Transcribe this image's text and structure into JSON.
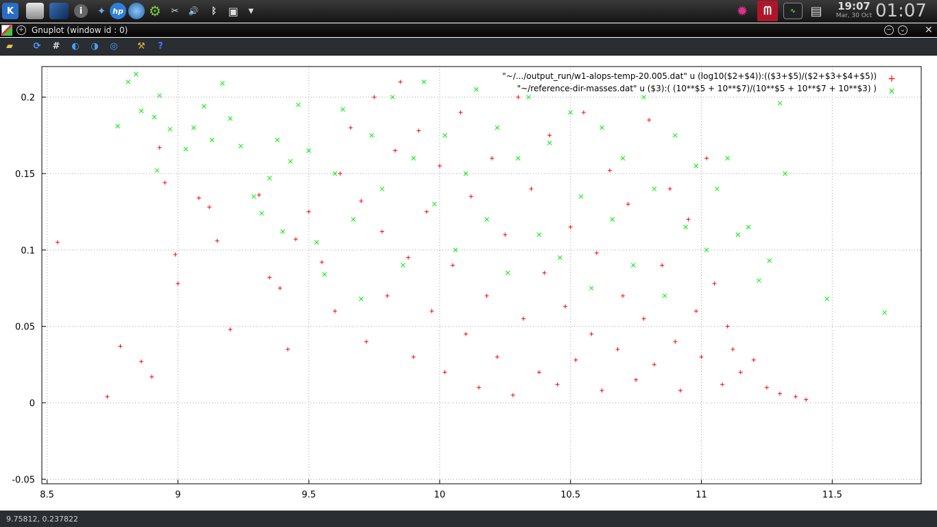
{
  "taskbar": {
    "kde_label": "K",
    "info_label": "i",
    "hp_label": "hp",
    "cut_label": "✂",
    "volume_label": "🔊",
    "bluetooth_label": "ᛒ",
    "clock_time": "19:07",
    "clock_date": "Mar, 30 Oct",
    "big_clock": "01:07"
  },
  "window": {
    "title": "Gnuplot (window id : 0)"
  },
  "toolbar": {
    "tools": [
      "copy-to-clipboard",
      "replot",
      "toggle-grid",
      "previous-zoom",
      "next-zoom",
      "autoscale",
      "preferences",
      "help"
    ]
  },
  "status": {
    "coords": "9.75812, 0.237822"
  },
  "colors": {
    "series1": "#ff0000",
    "series2": "#00ee00",
    "grid": "#a0a0a0"
  },
  "chart_data": {
    "type": "scatter",
    "title": "",
    "xlabel": "",
    "ylabel": "",
    "xlim": [
      8.48,
      11.84
    ],
    "ylim": [
      -0.053,
      0.22
    ],
    "x_ticks": [
      8.5,
      9,
      9.5,
      10,
      10.5,
      11,
      11.5
    ],
    "x_tick_labels": [
      "8.5",
      "9",
      "9.5",
      "10",
      "10.5",
      "11",
      "11.5"
    ],
    "y_ticks": [
      -0.05,
      0,
      0.05,
      0.1,
      0.15,
      0.2
    ],
    "y_tick_labels": [
      "-0.05",
      "0",
      "0.05",
      "0.1",
      "0.15",
      "0.2"
    ],
    "grid": true,
    "legend_position": "top-right",
    "series": [
      {
        "name": "\"~/.../output_run/w1-alops-temp-20.005.dat\" u (log10($2+$4)):(($3+$5)/($2+$3+$4+$5))",
        "marker": "+",
        "color": "#ff0000",
        "points": [
          [
            8.54,
            0.105
          ],
          [
            8.73,
            0.004
          ],
          [
            8.78,
            0.037
          ],
          [
            8.86,
            0.027
          ],
          [
            8.9,
            0.017
          ],
          [
            8.93,
            0.167
          ],
          [
            8.95,
            0.144
          ],
          [
            8.99,
            0.097
          ],
          [
            9.0,
            0.078
          ],
          [
            9.08,
            0.134
          ],
          [
            9.12,
            0.128
          ],
          [
            9.15,
            0.106
          ],
          [
            9.2,
            0.048
          ],
          [
            9.31,
            0.136
          ],
          [
            9.35,
            0.082
          ],
          [
            9.39,
            0.075
          ],
          [
            9.42,
            0.035
          ],
          [
            9.45,
            0.107
          ],
          [
            9.5,
            0.125
          ],
          [
            9.55,
            0.092
          ],
          [
            9.6,
            0.06
          ],
          [
            9.62,
            0.15
          ],
          [
            9.66,
            0.18
          ],
          [
            9.7,
            0.132
          ],
          [
            9.72,
            0.04
          ],
          [
            9.75,
            0.2
          ],
          [
            9.78,
            0.112
          ],
          [
            9.8,
            0.07
          ],
          [
            9.83,
            0.165
          ],
          [
            9.85,
            0.21
          ],
          [
            9.88,
            0.095
          ],
          [
            9.9,
            0.03
          ],
          [
            9.92,
            0.178
          ],
          [
            9.95,
            0.125
          ],
          [
            9.97,
            0.06
          ],
          [
            10.0,
            0.155
          ],
          [
            10.02,
            0.02
          ],
          [
            10.05,
            0.09
          ],
          [
            10.08,
            0.19
          ],
          [
            10.1,
            0.045
          ],
          [
            10.12,
            0.135
          ],
          [
            10.15,
            0.01
          ],
          [
            10.18,
            0.07
          ],
          [
            10.2,
            0.16
          ],
          [
            10.22,
            0.03
          ],
          [
            10.25,
            0.11
          ],
          [
            10.28,
            0.005
          ],
          [
            10.3,
            0.2
          ],
          [
            10.32,
            0.055
          ],
          [
            10.35,
            0.14
          ],
          [
            10.38,
            0.02
          ],
          [
            10.4,
            0.085
          ],
          [
            10.42,
            0.175
          ],
          [
            10.45,
            0.012
          ],
          [
            10.48,
            0.063
          ],
          [
            10.5,
            0.115
          ],
          [
            10.52,
            0.028
          ],
          [
            10.55,
            0.19
          ],
          [
            10.58,
            0.045
          ],
          [
            10.6,
            0.098
          ],
          [
            10.62,
            0.008
          ],
          [
            10.65,
            0.152
          ],
          [
            10.68,
            0.035
          ],
          [
            10.7,
            0.07
          ],
          [
            10.72,
            0.13
          ],
          [
            10.75,
            0.015
          ],
          [
            10.78,
            0.055
          ],
          [
            10.8,
            0.185
          ],
          [
            10.82,
            0.025
          ],
          [
            10.85,
            0.09
          ],
          [
            10.88,
            0.14
          ],
          [
            10.9,
            0.04
          ],
          [
            10.92,
            0.008
          ],
          [
            10.95,
            0.12
          ],
          [
            10.98,
            0.06
          ],
          [
            11.0,
            0.03
          ],
          [
            11.02,
            0.16
          ],
          [
            11.05,
            0.078
          ],
          [
            11.08,
            0.012
          ],
          [
            11.1,
            0.05
          ],
          [
            11.12,
            0.035
          ],
          [
            11.15,
            0.02
          ],
          [
            11.2,
            0.028
          ],
          [
            11.25,
            0.01
          ],
          [
            11.3,
            0.006
          ],
          [
            11.36,
            0.004
          ],
          [
            11.4,
            0.002
          ]
        ]
      },
      {
        "name": "\"~/reference-dir-masses.dat\" u ($3):( (10**$5 + 10**$7)/(10**$5 + 10**$7 + 10**$3) )",
        "marker": "x",
        "color": "#00ee00",
        "points": [
          [
            8.77,
            0.181
          ],
          [
            8.81,
            0.21
          ],
          [
            8.84,
            0.215
          ],
          [
            8.86,
            0.191
          ],
          [
            8.91,
            0.187
          ],
          [
            8.92,
            0.152
          ],
          [
            8.93,
            0.201
          ],
          [
            8.97,
            0.179
          ],
          [
            9.03,
            0.166
          ],
          [
            9.06,
            0.18
          ],
          [
            9.1,
            0.194
          ],
          [
            9.13,
            0.172
          ],
          [
            9.17,
            0.209
          ],
          [
            9.2,
            0.186
          ],
          [
            9.24,
            0.168
          ],
          [
            9.29,
            0.135
          ],
          [
            9.32,
            0.124
          ],
          [
            9.35,
            0.147
          ],
          [
            9.38,
            0.172
          ],
          [
            9.4,
            0.112
          ],
          [
            9.43,
            0.158
          ],
          [
            9.46,
            0.195
          ],
          [
            9.5,
            0.165
          ],
          [
            9.53,
            0.105
          ],
          [
            9.56,
            0.084
          ],
          [
            9.6,
            0.15
          ],
          [
            9.63,
            0.192
          ],
          [
            9.67,
            0.12
          ],
          [
            9.7,
            0.068
          ],
          [
            9.74,
            0.175
          ],
          [
            9.78,
            0.14
          ],
          [
            9.82,
            0.2
          ],
          [
            9.86,
            0.09
          ],
          [
            9.9,
            0.16
          ],
          [
            9.94,
            0.21
          ],
          [
            9.98,
            0.13
          ],
          [
            10.02,
            0.175
          ],
          [
            10.06,
            0.1
          ],
          [
            10.1,
            0.15
          ],
          [
            10.14,
            0.205
          ],
          [
            10.18,
            0.12
          ],
          [
            10.22,
            0.18
          ],
          [
            10.26,
            0.085
          ],
          [
            10.3,
            0.16
          ],
          [
            10.34,
            0.2
          ],
          [
            10.38,
            0.11
          ],
          [
            10.42,
            0.17
          ],
          [
            10.46,
            0.095
          ],
          [
            10.5,
            0.19
          ],
          [
            10.54,
            0.135
          ],
          [
            10.58,
            0.075
          ],
          [
            10.62,
            0.18
          ],
          [
            10.66,
            0.12
          ],
          [
            10.7,
            0.16
          ],
          [
            10.74,
            0.09
          ],
          [
            10.78,
            0.2
          ],
          [
            10.82,
            0.14
          ],
          [
            10.86,
            0.07
          ],
          [
            10.9,
            0.175
          ],
          [
            10.94,
            0.115
          ],
          [
            10.98,
            0.155
          ],
          [
            11.02,
            0.1
          ],
          [
            11.06,
            0.14
          ],
          [
            11.1,
            0.16
          ],
          [
            11.14,
            0.11
          ],
          [
            11.18,
            0.115
          ],
          [
            11.22,
            0.08
          ],
          [
            11.26,
            0.093
          ],
          [
            11.3,
            0.196
          ],
          [
            11.32,
            0.15
          ],
          [
            11.48,
            0.068
          ],
          [
            11.7,
            0.059
          ]
        ]
      }
    ]
  }
}
